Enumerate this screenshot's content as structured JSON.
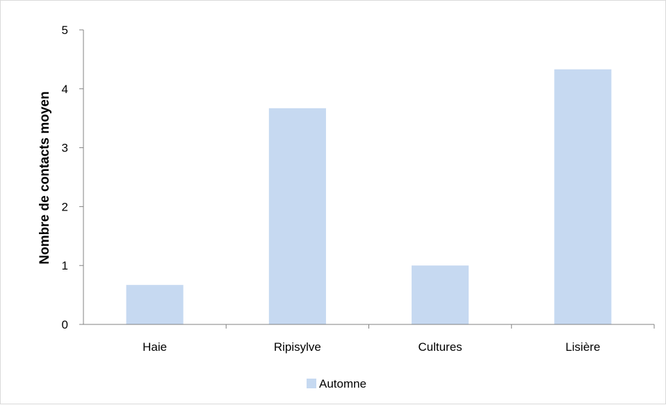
{
  "chart_data": {
    "type": "bar",
    "categories": [
      "Haie",
      "Ripisylve",
      "Cultures",
      "Lisière"
    ],
    "series": [
      {
        "name": "Automne",
        "values": [
          0.67,
          3.67,
          1.0,
          4.33
        ]
      }
    ],
    "title": "",
    "xlabel": "",
    "ylabel": "Nombre de contacts moyen",
    "ylim": [
      0,
      5
    ],
    "yticks": [
      "0",
      "1",
      "2",
      "3",
      "4",
      "5"
    ],
    "grid": false,
    "legend_position": "bottom",
    "colors": {
      "bar": "#c6d9f1",
      "axis": "#808080"
    }
  }
}
